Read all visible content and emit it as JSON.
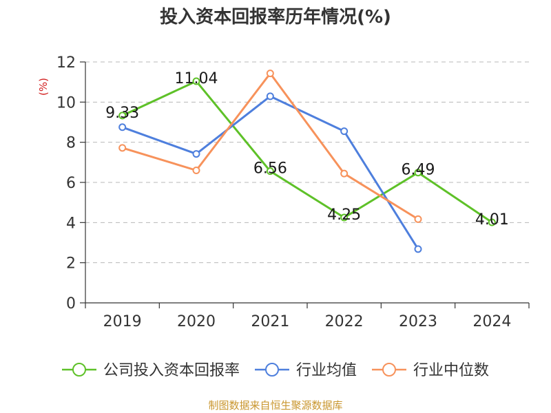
{
  "chart_data": {
    "type": "line",
    "title": "投入资本回报率历年情况(%)",
    "ylabel": "(%)",
    "xlabel": "",
    "categories": [
      "2019",
      "2020",
      "2021",
      "2022",
      "2023",
      "2024"
    ],
    "ylim": [
      0,
      12
    ],
    "yticks": [
      0,
      2,
      4,
      6,
      8,
      10,
      12
    ],
    "grid": true,
    "legend_position": "bottom",
    "series": [
      {
        "name": "公司投入资本回报率",
        "color": "#5ec128",
        "values": [
          9.33,
          11.04,
          6.56,
          4.25,
          6.49,
          4.01
        ],
        "labels": [
          "9.33",
          "11.04",
          "6.56",
          "4.25",
          "6.49",
          "4.01"
        ]
      },
      {
        "name": "行业均值",
        "color": "#4e7fdd",
        "values": [
          8.75,
          7.42,
          10.29,
          8.55,
          2.68,
          null
        ]
      },
      {
        "name": "行业中位数",
        "color": "#f7925b",
        "values": [
          7.72,
          6.6,
          11.43,
          6.44,
          4.17,
          null
        ]
      }
    ]
  },
  "source": "制图数据来自恒生聚源数据库"
}
